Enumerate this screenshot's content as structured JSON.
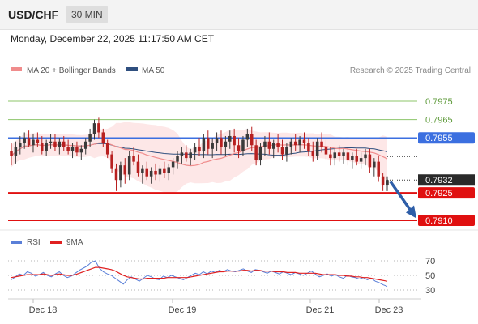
{
  "header": {
    "pair": "USD/CHF",
    "timeframe": "30 MIN"
  },
  "timestamp": "Monday, December 22, 2025 11:17:50 AM CET",
  "legend": {
    "ma20_label": "MA 20 + Bollinger Bands",
    "ma50_label": "MA 50",
    "credit": "Research © 2025 Trading Central",
    "ma20_color": "#f08c8c",
    "ma50_color": "#2f4f7f"
  },
  "rsi_legend": {
    "rsi_label": "RSI",
    "ma_label": "9MA",
    "rsi_color": "#5a7fd8",
    "ma_color": "#e02020"
  },
  "chart_data": {
    "type": "candlestick",
    "ylim": [
      0.7905,
      0.7985
    ],
    "levels": [
      {
        "value": 0.7975,
        "label": "0.7975",
        "kind": "resistance-green",
        "color": "#8cc46a"
      },
      {
        "value": 0.7965,
        "label": "0.7965",
        "kind": "resistance-green",
        "color": "#8cc46a"
      },
      {
        "value": 0.7955,
        "label": "0.7955",
        "kind": "pivot",
        "color": "#3b6fe0"
      },
      {
        "value": 0.7932,
        "label": "0.7932",
        "kind": "last-price",
        "color": "#2a2a2a"
      },
      {
        "value": 0.7925,
        "label": "0.7925",
        "kind": "support",
        "color": "#e01010"
      },
      {
        "value": 0.791,
        "label": "0.7910",
        "kind": "support",
        "color": "#e01010"
      }
    ],
    "x_ticks": [
      "Dec 18",
      "Dec 19",
      "Dec 21",
      "Dec 23"
    ],
    "arrow": {
      "from": 0.7932,
      "to": 0.7912,
      "direction": "down"
    },
    "rsi": {
      "ylim": [
        25,
        78
      ],
      "ticks": [
        70,
        50,
        30
      ],
      "values": [
        44,
        48,
        52,
        50,
        55,
        53,
        49,
        51,
        54,
        50,
        48,
        52,
        55,
        50,
        47,
        49,
        53,
        57,
        60,
        63,
        68,
        70,
        60,
        55,
        52,
        50,
        46,
        42,
        38,
        44,
        48,
        45,
        42,
        46,
        50,
        48,
        45,
        44,
        49,
        47,
        50,
        48,
        46,
        44,
        47,
        50,
        53,
        51,
        55,
        52,
        56,
        54,
        57,
        55,
        58,
        56,
        55,
        57,
        59,
        56,
        54,
        58,
        57,
        55,
        53,
        56,
        54,
        52,
        55,
        53,
        51,
        54,
        52,
        50,
        53,
        56,
        52,
        48,
        50,
        52,
        49,
        51,
        48,
        46,
        50,
        48,
        47,
        45,
        47,
        44,
        46,
        42,
        40,
        37,
        35
      ],
      "ma_values": [
        47,
        48,
        49,
        50,
        51,
        51,
        51,
        51,
        52,
        51,
        50,
        51,
        52,
        51,
        50,
        50,
        51,
        53,
        55,
        57,
        59,
        61,
        61,
        60,
        59,
        58,
        56,
        53,
        50,
        48,
        47,
        46,
        45,
        45,
        46,
        46,
        46,
        46,
        46,
        47,
        47,
        47,
        47,
        47,
        47,
        48,
        49,
        50,
        51,
        52,
        53,
        54,
        55,
        55,
        56,
        56,
        56,
        56,
        57,
        57,
        56,
        57,
        57,
        56,
        56,
        56,
        55,
        55,
        55,
        54,
        54,
        54,
        53,
        53,
        53,
        53,
        53,
        52,
        51,
        51,
        51,
        51,
        50,
        50,
        49,
        49,
        48,
        48,
        47,
        47,
        46,
        45,
        44,
        43,
        42
      ]
    },
    "candles": [
      [
        0.7948,
        0.7952,
        0.794,
        0.7945
      ],
      [
        0.7945,
        0.7953,
        0.7941,
        0.795
      ],
      [
        0.795,
        0.7956,
        0.7946,
        0.7952
      ],
      [
        0.7952,
        0.7958,
        0.7949,
        0.7955
      ],
      [
        0.7955,
        0.7959,
        0.795,
        0.7951
      ],
      [
        0.7951,
        0.7957,
        0.7947,
        0.7954
      ],
      [
        0.7954,
        0.7958,
        0.795,
        0.7952
      ],
      [
        0.7952,
        0.7956,
        0.7946,
        0.7948
      ],
      [
        0.7948,
        0.7954,
        0.7945,
        0.7952
      ],
      [
        0.7952,
        0.7957,
        0.7949,
        0.7953
      ],
      [
        0.7953,
        0.7957,
        0.7948,
        0.795
      ],
      [
        0.795,
        0.7955,
        0.7946,
        0.7953
      ],
      [
        0.7953,
        0.7956,
        0.7948,
        0.795
      ],
      [
        0.795,
        0.7954,
        0.7946,
        0.7948
      ],
      [
        0.7948,
        0.7952,
        0.7944,
        0.795
      ],
      [
        0.795,
        0.7953,
        0.7945,
        0.7947
      ],
      [
        0.7947,
        0.7951,
        0.7943,
        0.7949
      ],
      [
        0.7949,
        0.7955,
        0.7946,
        0.7953
      ],
      [
        0.7953,
        0.796,
        0.795,
        0.7957
      ],
      [
        0.7957,
        0.7965,
        0.7954,
        0.7963
      ],
      [
        0.7963,
        0.7966,
        0.7955,
        0.7958
      ],
      [
        0.7958,
        0.796,
        0.795,
        0.7952
      ],
      [
        0.7952,
        0.7954,
        0.7944,
        0.7946
      ],
      [
        0.7946,
        0.7948,
        0.7936,
        0.7938
      ],
      [
        0.7938,
        0.7941,
        0.7926,
        0.7932
      ],
      [
        0.7932,
        0.7942,
        0.7928,
        0.794
      ],
      [
        0.794,
        0.7944,
        0.793,
        0.7935
      ],
      [
        0.7935,
        0.7948,
        0.7932,
        0.7945
      ],
      [
        0.7945,
        0.795,
        0.794,
        0.7942
      ],
      [
        0.7942,
        0.7946,
        0.7934,
        0.7936
      ],
      [
        0.7936,
        0.794,
        0.793,
        0.7938
      ],
      [
        0.7938,
        0.7942,
        0.7932,
        0.7934
      ],
      [
        0.7934,
        0.7939,
        0.793,
        0.7937
      ],
      [
        0.7937,
        0.7941,
        0.7932,
        0.7935
      ],
      [
        0.7935,
        0.794,
        0.7931,
        0.7938
      ],
      [
        0.7938,
        0.7942,
        0.7933,
        0.7936
      ],
      [
        0.7936,
        0.7941,
        0.7932,
        0.7939
      ],
      [
        0.7939,
        0.7944,
        0.7935,
        0.7942
      ],
      [
        0.7942,
        0.7948,
        0.7938,
        0.7945
      ],
      [
        0.7945,
        0.795,
        0.7941,
        0.7947
      ],
      [
        0.7947,
        0.7951,
        0.7942,
        0.7944
      ],
      [
        0.7944,
        0.7949,
        0.794,
        0.7947
      ],
      [
        0.7947,
        0.7952,
        0.7943,
        0.795
      ],
      [
        0.795,
        0.7955,
        0.7945,
        0.7948
      ],
      [
        0.7948,
        0.7957,
        0.7944,
        0.7955
      ],
      [
        0.7955,
        0.7959,
        0.7946,
        0.7949
      ],
      [
        0.7949,
        0.7955,
        0.7944,
        0.7952
      ],
      [
        0.7952,
        0.7958,
        0.7948,
        0.7955
      ],
      [
        0.7955,
        0.7959,
        0.7946,
        0.795
      ],
      [
        0.795,
        0.7956,
        0.7945,
        0.7953
      ],
      [
        0.7953,
        0.7959,
        0.7949,
        0.7956
      ],
      [
        0.7956,
        0.796,
        0.7947,
        0.7951
      ],
      [
        0.7951,
        0.7955,
        0.7944,
        0.7948
      ],
      [
        0.7948,
        0.7956,
        0.7945,
        0.7954
      ],
      [
        0.7954,
        0.796,
        0.795,
        0.7957
      ],
      [
        0.7957,
        0.7961,
        0.7948,
        0.7951
      ],
      [
        0.7951,
        0.7954,
        0.794,
        0.7943
      ],
      [
        0.7943,
        0.7952,
        0.794,
        0.795
      ],
      [
        0.795,
        0.7956,
        0.7945,
        0.7953
      ],
      [
        0.7953,
        0.7958,
        0.7946,
        0.7949
      ],
      [
        0.7949,
        0.7954,
        0.7944,
        0.7952
      ],
      [
        0.7952,
        0.7957,
        0.7947,
        0.795
      ],
      [
        0.795,
        0.7954,
        0.7943,
        0.7946
      ],
      [
        0.7946,
        0.7952,
        0.7942,
        0.795
      ],
      [
        0.795,
        0.7955,
        0.7946,
        0.7953
      ],
      [
        0.7953,
        0.7957,
        0.7948,
        0.7951
      ],
      [
        0.7951,
        0.7956,
        0.7947,
        0.7954
      ],
      [
        0.7954,
        0.7958,
        0.7949,
        0.7952
      ],
      [
        0.7952,
        0.7955,
        0.7945,
        0.7948
      ],
      [
        0.7948,
        0.7953,
        0.7942,
        0.7945
      ],
      [
        0.7945,
        0.7955,
        0.7943,
        0.7953
      ],
      [
        0.7953,
        0.7958,
        0.7947,
        0.795
      ],
      [
        0.795,
        0.7954,
        0.7943,
        0.7946
      ],
      [
        0.7946,
        0.795,
        0.794,
        0.7944
      ],
      [
        0.7944,
        0.7949,
        0.794,
        0.7947
      ],
      [
        0.7947,
        0.7951,
        0.7942,
        0.7945
      ],
      [
        0.7945,
        0.7949,
        0.7941,
        0.7947
      ],
      [
        0.7947,
        0.795,
        0.794,
        0.7943
      ],
      [
        0.7943,
        0.7947,
        0.7938,
        0.7945
      ],
      [
        0.7945,
        0.7949,
        0.794,
        0.7942
      ],
      [
        0.7942,
        0.7947,
        0.7938,
        0.7944
      ],
      [
        0.7944,
        0.7949,
        0.794,
        0.7946
      ],
      [
        0.7946,
        0.7949,
        0.7936,
        0.7939
      ],
      [
        0.7939,
        0.7944,
        0.7934,
        0.7942
      ],
      [
        0.7942,
        0.7945,
        0.7931,
        0.7934
      ],
      [
        0.7934,
        0.7936,
        0.7926,
        0.7929
      ],
      [
        0.7929,
        0.7934,
        0.7926,
        0.7932
      ]
    ]
  }
}
